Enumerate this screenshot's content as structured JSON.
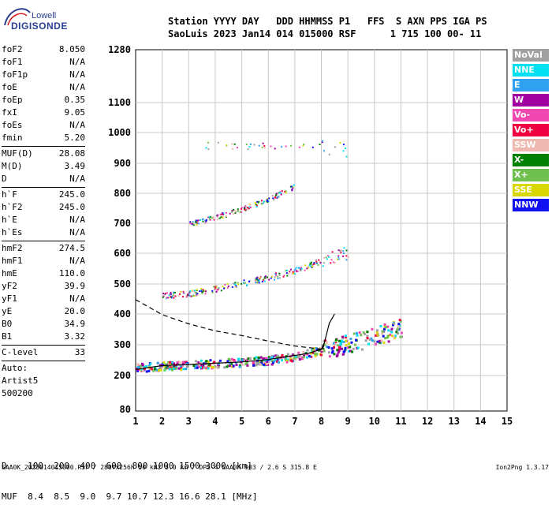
{
  "logo": {
    "top": "Lowell",
    "main": "DIGISONDE"
  },
  "header": {
    "line1": "Station YYYY DAY   DDD HHMMSS P1   FFS  S AXN PPS IGA PS",
    "line2": "SaoLuis 2023 Jan14 014 015000 RSF      1 715 100 00- 11"
  },
  "params": [
    {
      "k": "foF2",
      "v": "8.050"
    },
    {
      "k": "foF1",
      "v": "N/A"
    },
    {
      "k": "foF1p",
      "v": "N/A"
    },
    {
      "k": "foE",
      "v": "N/A"
    },
    {
      "k": "foEp",
      "v": "0.35"
    },
    {
      "k": "fxI",
      "v": "9.05"
    },
    {
      "k": "foEs",
      "v": "N/A"
    },
    {
      "k": "fmin",
      "v": "5.20"
    },
    {
      "sep": true
    },
    {
      "k": "MUF(D)",
      "v": "28.08"
    },
    {
      "k": "M(D)",
      "v": "3.49"
    },
    {
      "k": "D",
      "v": "N/A"
    },
    {
      "sep": true
    },
    {
      "k": "h`F",
      "v": "245.0"
    },
    {
      "k": "h`F2",
      "v": "245.0"
    },
    {
      "k": "h`E",
      "v": "N/A"
    },
    {
      "k": "h`Es",
      "v": "N/A"
    },
    {
      "sep": true
    },
    {
      "k": "hmF2",
      "v": "274.5"
    },
    {
      "k": "hmF1",
      "v": "N/A"
    },
    {
      "k": "hmE",
      "v": "110.0"
    },
    {
      "k": "yF2",
      "v": "39.9"
    },
    {
      "k": "yF1",
      "v": "N/A"
    },
    {
      "k": "yE",
      "v": "20.0"
    },
    {
      "k": "B0",
      "v": "34.9"
    },
    {
      "k": "B1",
      "v": "3.32"
    },
    {
      "sep": true
    },
    {
      "k": "C-level",
      "v": "33"
    },
    {
      "sep": true
    },
    {
      "t": "Auto:"
    },
    {
      "t": "Artist5"
    },
    {
      "t": "500200"
    }
  ],
  "legend": [
    {
      "label": "NoVal",
      "color": "#a0a0a0"
    },
    {
      "label": "NNE",
      "color": "#00e0f0"
    },
    {
      "label": "E",
      "color": "#30a0f0"
    },
    {
      "label": "W",
      "color": "#a000a0"
    },
    {
      "label": "Vo-",
      "color": "#f048b0"
    },
    {
      "label": "Vo+",
      "color": "#f00040"
    },
    {
      "label": "SSW",
      "color": "#f0b8b0"
    },
    {
      "label": "X-",
      "color": "#008000"
    },
    {
      "label": "X+",
      "color": "#70c050"
    },
    {
      "label": "SSE",
      "color": "#d8d800"
    },
    {
      "label": "NNW",
      "color": "#1010f0"
    }
  ],
  "freq_table": {
    "line1": "D    100  200  400  600  800 1000 1500 3000 [km]",
    "line2": "MUF  8.4  8.5  9.0  9.7 10.7 12.3 16.6 28.1 [MHz]"
  },
  "footer": "SAA0K_2023014015000.RSF / 280fx256h 50 kHz 5.0 km / DPS-4 SAA0K 903 / 2.6 S 315.8 E",
  "version": "Ion2Png 1.3.17",
  "chart_data": {
    "type": "scatter",
    "title": "",
    "xlabel": "",
    "ylabel": "",
    "xlim": [
      1,
      15
    ],
    "ylim": [
      80,
      1280
    ],
    "xticks": [
      1,
      2,
      3,
      4,
      5,
      6,
      7,
      8,
      9,
      10,
      11,
      12,
      13,
      14,
      15
    ],
    "yticks": [
      80,
      200,
      300,
      400,
      500,
      600,
      700,
      800,
      900,
      1000,
      1100,
      1280
    ],
    "grid": true,
    "series": [
      {
        "trace": "F-layer first hop",
        "points": [
          [
            1.0,
            226
          ],
          [
            1.5,
            231
          ],
          [
            2.0,
            234
          ],
          [
            3.0,
            238
          ],
          [
            4.0,
            242
          ],
          [
            5.0,
            246
          ],
          [
            6.0,
            252
          ],
          [
            7.0,
            265
          ],
          [
            8.0,
            285
          ],
          [
            9.0,
            305
          ],
          [
            10.0,
            330
          ],
          [
            11.0,
            360
          ]
        ]
      },
      {
        "trace": "second hop",
        "points": [
          [
            2.0,
            462
          ],
          [
            3.0,
            470
          ],
          [
            4.0,
            486
          ],
          [
            5.0,
            504
          ],
          [
            6.0,
            522
          ],
          [
            7.0,
            545
          ],
          [
            8.0,
            578
          ],
          [
            9.0,
            605
          ]
        ]
      },
      {
        "trace": "third hop",
        "points": [
          [
            3.0,
            700
          ],
          [
            4.0,
            722
          ],
          [
            5.0,
            748
          ],
          [
            6.0,
            782
          ],
          [
            7.0,
            825
          ]
        ]
      },
      {
        "trace": "fourth hop",
        "points": [
          [
            3.5,
            960
          ],
          [
            9.0,
            950
          ]
        ]
      }
    ],
    "curves": {
      "profile_solid": [
        [
          1.0,
          220
        ],
        [
          2.0,
          232
        ],
        [
          3.0,
          236
        ],
        [
          4.0,
          240
        ],
        [
          5.0,
          244
        ],
        [
          6.0,
          252
        ],
        [
          7.0,
          265
        ],
        [
          7.5,
          272
        ],
        [
          8.0,
          285
        ],
        [
          8.1,
          305
        ]
      ],
      "profile_spike": [
        [
          8.05,
          285
        ],
        [
          8.3,
          370
        ],
        [
          8.5,
          400
        ]
      ],
      "profile_dashed": [
        [
          1.0,
          448
        ],
        [
          2.0,
          398
        ],
        [
          3.0,
          368
        ],
        [
          4.0,
          345
        ],
        [
          5.0,
          330
        ],
        [
          6.0,
          312
        ],
        [
          7.0,
          296
        ],
        [
          8.0,
          286
        ]
      ]
    }
  }
}
